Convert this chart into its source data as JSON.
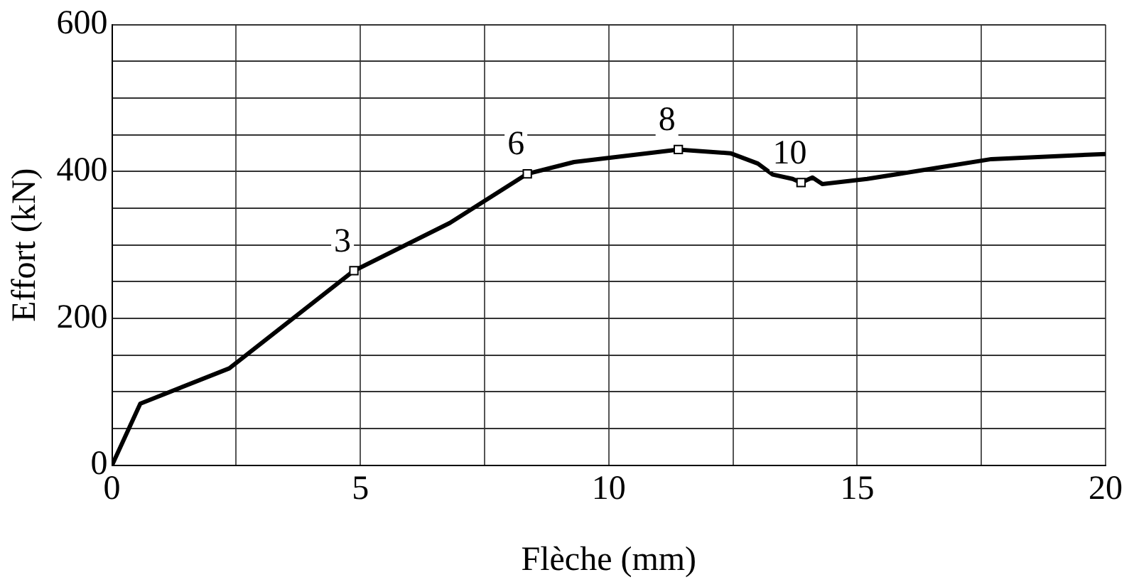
{
  "chart_data": {
    "type": "line",
    "xlabel": "Flèche (mm)",
    "ylabel": "Effort (kN)",
    "xlim": [
      0,
      20
    ],
    "ylim": [
      0,
      600
    ],
    "xticks": [
      0,
      {
        "value": 2.5,
        "label": null
      },
      5,
      {
        "value": 7.5,
        "label": null
      },
      10,
      {
        "value": 12.5,
        "label": null
      },
      15,
      {
        "value": 17.5,
        "label": null
      },
      20
    ],
    "yticks": [
      0,
      {
        "value": 50,
        "label": null
      },
      {
        "value": 100,
        "label": null
      },
      {
        "value": 150,
        "label": null
      },
      200,
      {
        "value": 250,
        "label": null
      },
      {
        "value": 300,
        "label": null
      },
      {
        "value": 350,
        "label": null
      },
      400,
      {
        "value": 450,
        "label": null
      },
      {
        "value": 500,
        "label": null
      },
      {
        "value": 550,
        "label": null
      },
      600
    ],
    "grid": true,
    "legend": false,
    "series": [
      {
        "type": "line",
        "color": "#000000",
        "marker": "none",
        "line_style": "solid",
        "x": [
          0,
          0.57,
          2.36,
          4.87,
          6.8,
          8.36,
          9.3,
          11.4,
          12.45,
          13.0,
          13.3,
          13.7,
          13.87,
          14.1,
          14.3,
          15.2,
          16.6,
          17.7,
          20
        ],
        "values": [
          0,
          84,
          132,
          265,
          330,
          397,
          413,
          430,
          425,
          411,
          396,
          390,
          385,
          392,
          383,
          390,
          405,
          417,
          424
        ]
      },
      {
        "type": "scatter",
        "color": "#ffffff",
        "marker": "square",
        "x": [
          4.87,
          8.36,
          11.4,
          13.87
        ],
        "values": [
          265,
          397,
          430,
          385
        ]
      }
    ],
    "annotations": [
      {
        "text": "3",
        "x": 4.87,
        "y": 265
      },
      {
        "text": "6",
        "x": 8.36,
        "y": 397
      },
      {
        "text": "8",
        "x": 11.4,
        "y": 430
      },
      {
        "text": "10",
        "x": 13.87,
        "y": 385
      }
    ]
  }
}
